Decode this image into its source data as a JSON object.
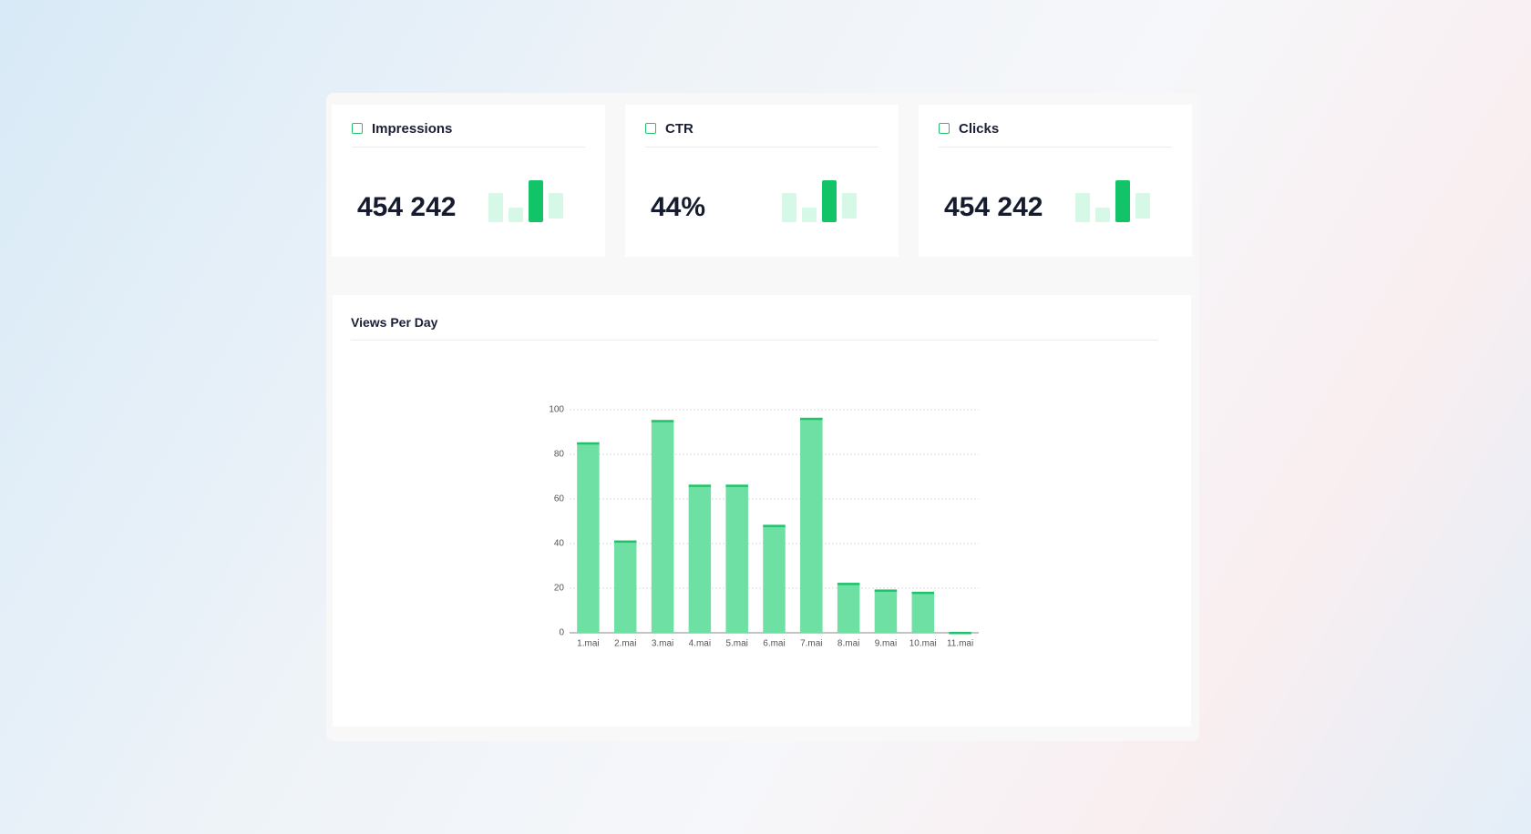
{
  "cards": [
    {
      "title": "Impressions",
      "value": "454 242"
    },
    {
      "title": "CTR",
      "value": "44%"
    },
    {
      "title": "Clicks",
      "value": "454 242"
    }
  ],
  "chart_data": {
    "type": "bar",
    "title": "Views Per Day",
    "categories": [
      "1.mai",
      "2.mai",
      "3.mai",
      "4.mai",
      "5.mai",
      "6.mai",
      "7.mai",
      "8.mai",
      "9.mai",
      "10.mai",
      "11.mai"
    ],
    "values": [
      85,
      41,
      95,
      66,
      66,
      48,
      96,
      22,
      19,
      18,
      0
    ],
    "color": "#6fe0a3",
    "edge_color": "#1fc26a",
    "ylim": [
      0,
      100
    ],
    "yticks": [
      0,
      20,
      40,
      60,
      80,
      100
    ],
    "grid": true
  }
}
